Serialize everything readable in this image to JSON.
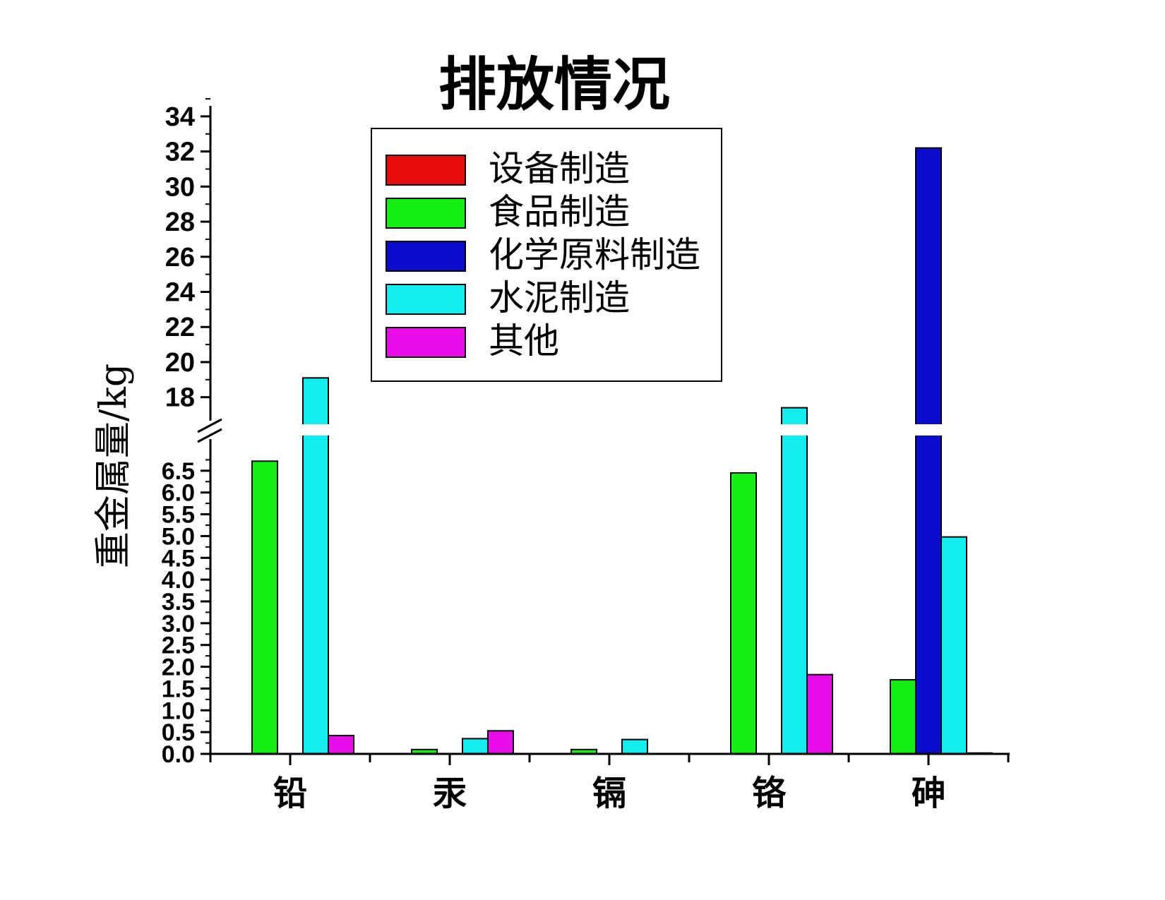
{
  "chart_data": {
    "type": "bar",
    "title": "排放情况",
    "ylabel": "重金属量/kg",
    "xlabel": "",
    "categories": [
      "铅",
      "汞",
      "镉",
      "铬",
      "砷"
    ],
    "series": [
      {
        "name": "设备制造",
        "color": "#e80c0c",
        "values": [
          0,
          0,
          0,
          0,
          0
        ]
      },
      {
        "name": "食品制造",
        "color": "#12f012",
        "values": [
          6.72,
          0.1,
          0.1,
          6.45,
          1.7
        ]
      },
      {
        "name": "化学原料制造",
        "color": "#0c0ccc",
        "values": [
          0,
          0,
          0,
          0,
          32.2
        ]
      },
      {
        "name": "水泥制造",
        "color": "#12eef0",
        "values": [
          19.1,
          0.35,
          0.33,
          17.4,
          4.98
        ]
      },
      {
        "name": "其他",
        "color": "#e80ce8",
        "values": [
          0.42,
          0.53,
          0,
          1.82,
          0.02
        ]
      }
    ],
    "axis_break": true,
    "lower_segment": {
      "ylim": [
        0,
        7
      ],
      "ticks": [
        "0.0",
        "0.5",
        "1.0",
        "1.5",
        "2.0",
        "2.5",
        "3.0",
        "3.5",
        "4.0",
        "4.5",
        "5.0",
        "5.5",
        "6.0",
        "6.5"
      ]
    },
    "upper_segment": {
      "ylim": [
        16.5,
        35
      ],
      "ticks": [
        "18",
        "20",
        "22",
        "24",
        "26",
        "28",
        "30",
        "32",
        "34"
      ]
    },
    "legend_position": "top-center",
    "grid": false
  }
}
